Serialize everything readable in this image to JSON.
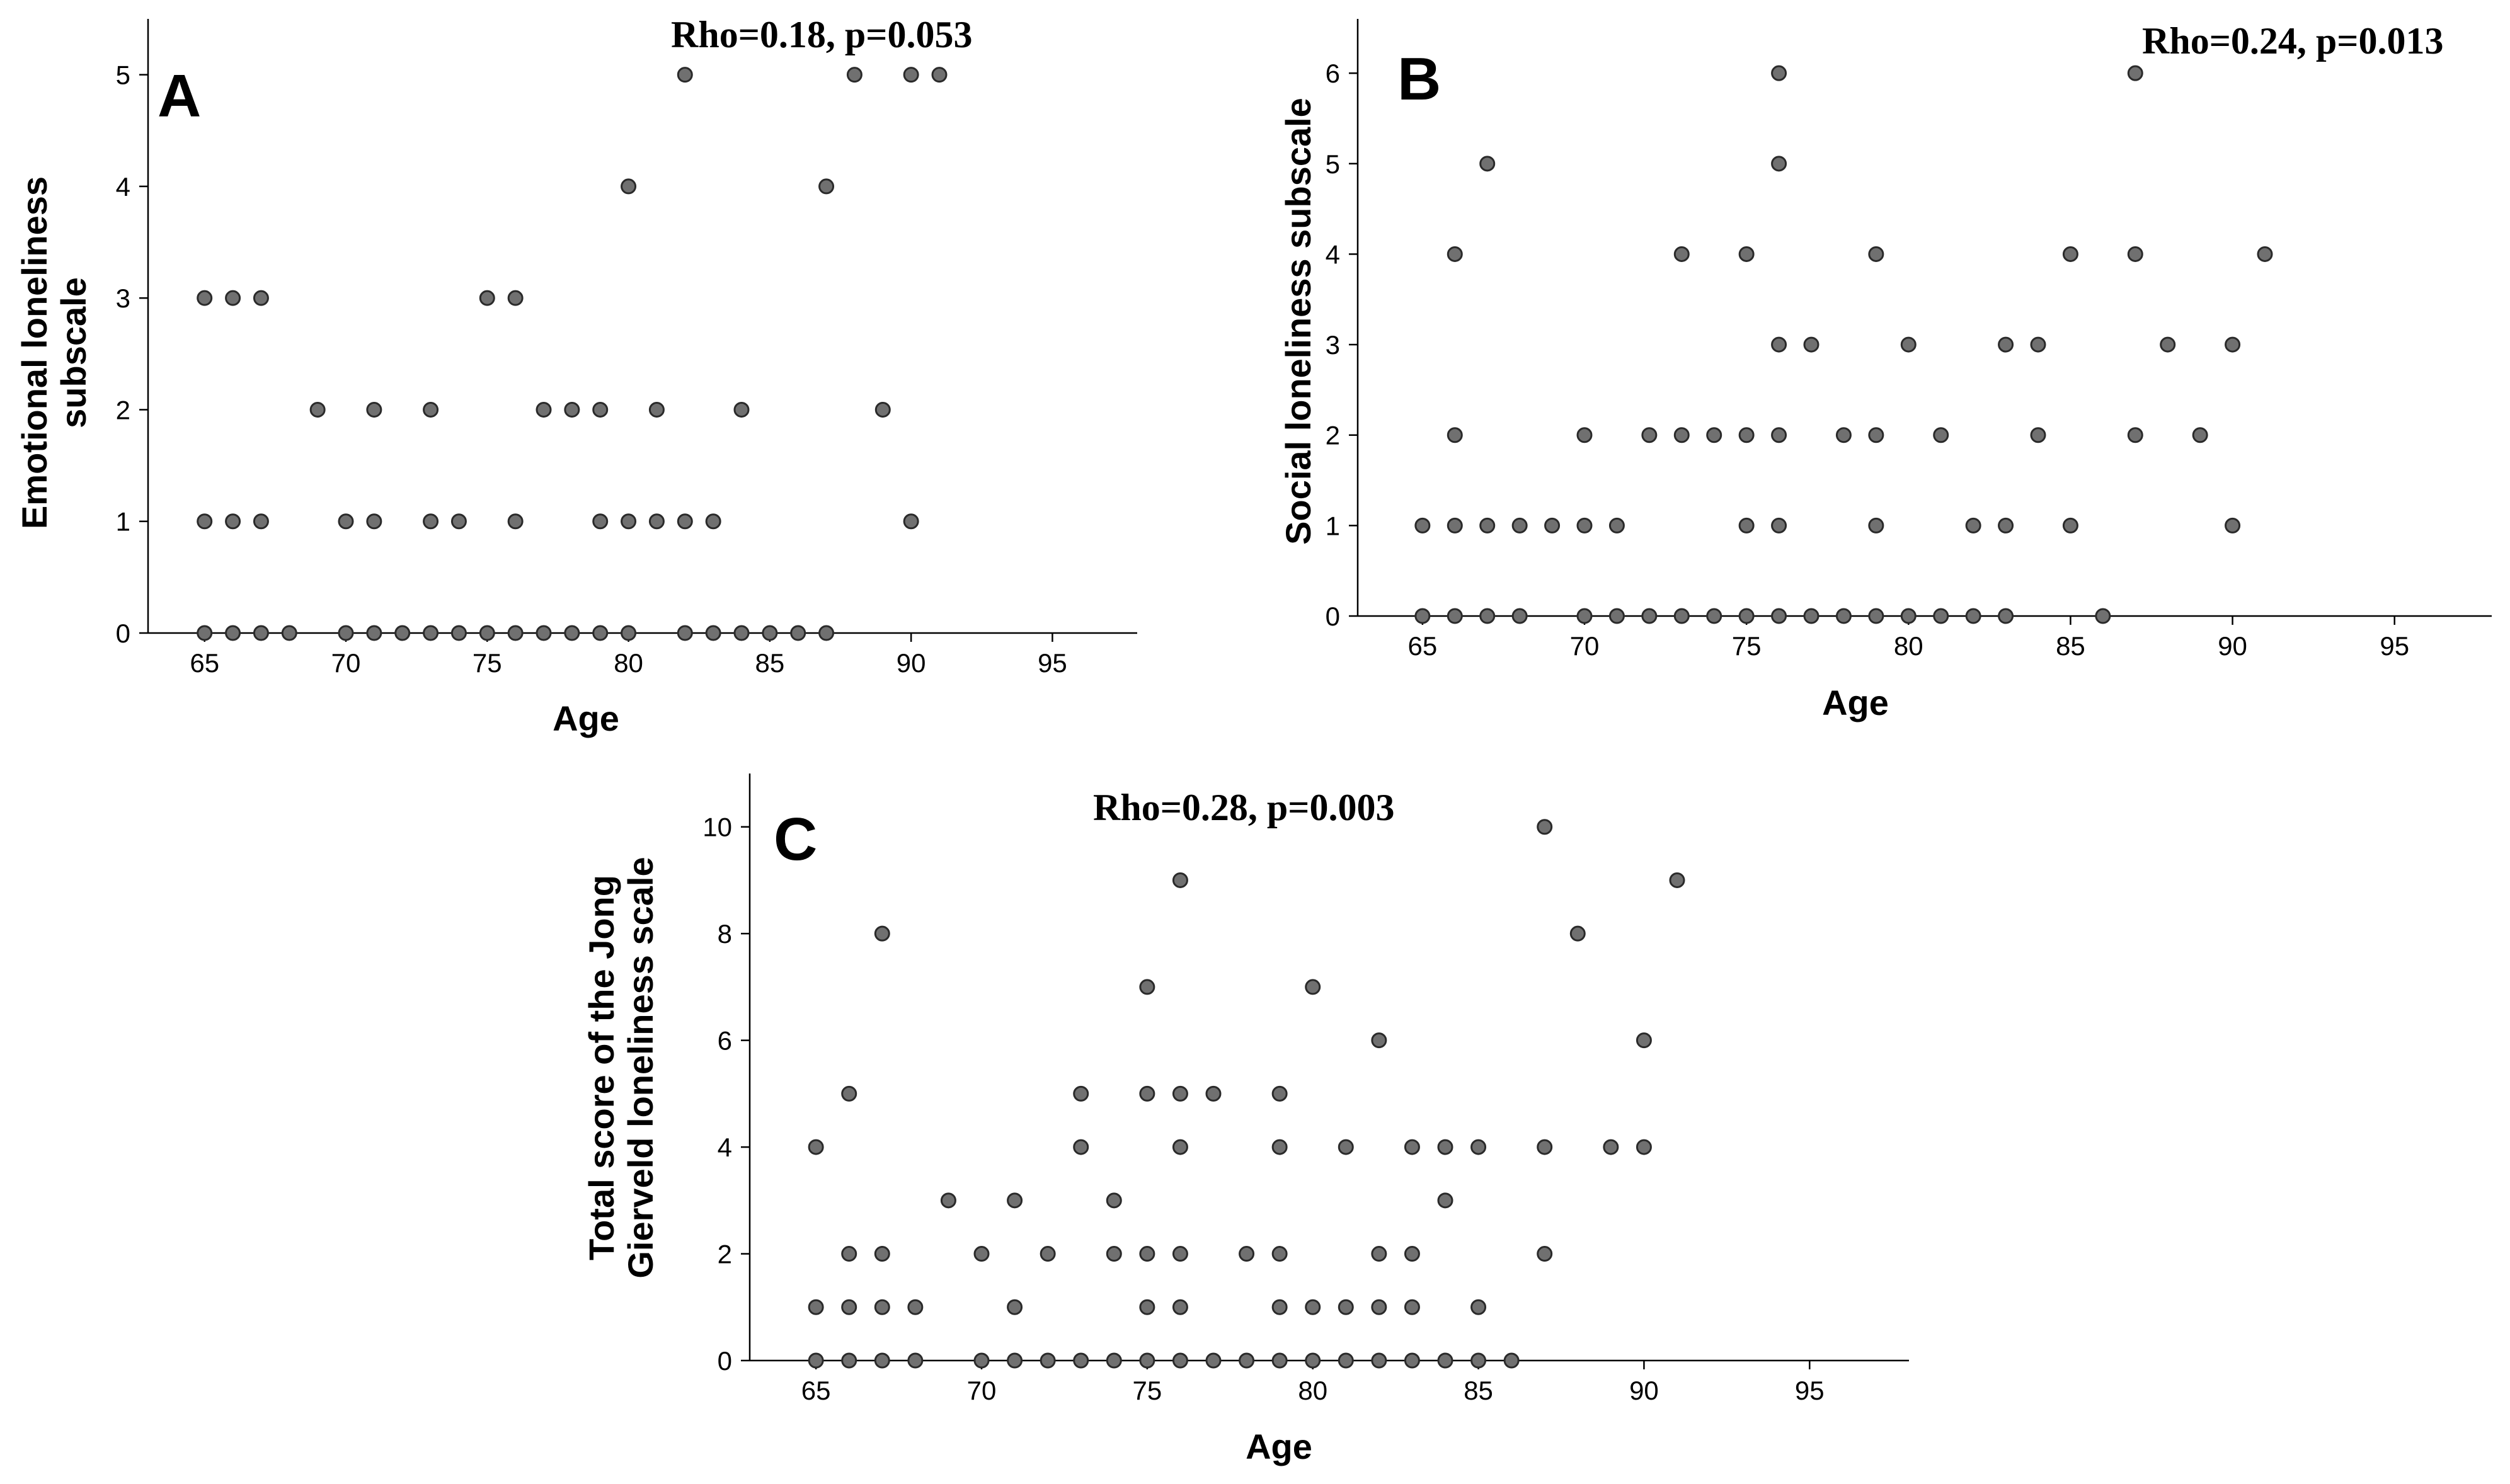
{
  "chart_data": [
    {
      "type": "scatter",
      "panel_letter": "A",
      "annotation": "Rho=0.18, p=0.053",
      "xlabel": "Age",
      "ylabel": [
        "Emotional loneliness",
        "subscale"
      ],
      "xlim": [
        63,
        98
      ],
      "ylim": [
        0,
        5.5
      ],
      "xticks": [
        65,
        70,
        75,
        80,
        85,
        90,
        95
      ],
      "yticks": [
        0,
        1,
        2,
        3,
        4,
        5
      ],
      "points": [
        [
          65,
          0
        ],
        [
          66,
          0
        ],
        [
          67,
          0
        ],
        [
          68,
          0
        ],
        [
          70,
          0
        ],
        [
          71,
          0
        ],
        [
          72,
          0
        ],
        [
          73,
          0
        ],
        [
          74,
          0
        ],
        [
          75,
          0
        ],
        [
          76,
          0
        ],
        [
          77,
          0
        ],
        [
          78,
          0
        ],
        [
          79,
          0
        ],
        [
          80,
          0
        ],
        [
          82,
          0
        ],
        [
          83,
          0
        ],
        [
          84,
          0
        ],
        [
          85,
          0
        ],
        [
          86,
          0
        ],
        [
          87,
          0
        ],
        [
          65,
          1
        ],
        [
          66,
          1
        ],
        [
          67,
          1
        ],
        [
          70,
          1
        ],
        [
          71,
          1
        ],
        [
          73,
          1
        ],
        [
          74,
          1
        ],
        [
          76,
          1
        ],
        [
          79,
          1
        ],
        [
          80,
          1
        ],
        [
          81,
          1
        ],
        [
          82,
          1
        ],
        [
          83,
          1
        ],
        [
          90,
          1
        ],
        [
          69,
          2
        ],
        [
          71,
          2
        ],
        [
          73,
          2
        ],
        [
          77,
          2
        ],
        [
          78,
          2
        ],
        [
          79,
          2
        ],
        [
          81,
          2
        ],
        [
          84,
          2
        ],
        [
          89,
          2
        ],
        [
          65,
          3
        ],
        [
          66,
          3
        ],
        [
          67,
          3
        ],
        [
          75,
          3
        ],
        [
          76,
          3
        ],
        [
          80,
          4
        ],
        [
          87,
          4
        ],
        [
          82,
          5
        ],
        [
          88,
          5
        ],
        [
          90,
          5
        ],
        [
          91,
          5
        ]
      ]
    },
    {
      "type": "scatter",
      "panel_letter": "B",
      "annotation": "Rho=0.24, p=0.013",
      "xlabel": "Age",
      "ylabel": [
        "Social loneliness subscale"
      ],
      "xlim": [
        63,
        98
      ],
      "ylim": [
        0,
        6.6
      ],
      "xticks": [
        65,
        70,
        75,
        80,
        85,
        90,
        95
      ],
      "yticks": [
        0,
        1,
        2,
        3,
        4,
        5,
        6
      ],
      "points": [
        [
          65,
          0
        ],
        [
          66,
          0
        ],
        [
          67,
          0
        ],
        [
          68,
          0
        ],
        [
          70,
          0
        ],
        [
          71,
          0
        ],
        [
          72,
          0
        ],
        [
          73,
          0
        ],
        [
          74,
          0
        ],
        [
          75,
          0
        ],
        [
          76,
          0
        ],
        [
          77,
          0
        ],
        [
          78,
          0
        ],
        [
          79,
          0
        ],
        [
          80,
          0
        ],
        [
          81,
          0
        ],
        [
          82,
          0
        ],
        [
          83,
          0
        ],
        [
          86,
          0
        ],
        [
          65,
          1
        ],
        [
          66,
          1
        ],
        [
          67,
          1
        ],
        [
          68,
          1
        ],
        [
          69,
          1
        ],
        [
          70,
          1
        ],
        [
          71,
          1
        ],
        [
          75,
          1
        ],
        [
          76,
          1
        ],
        [
          79,
          1
        ],
        [
          82,
          1
        ],
        [
          83,
          1
        ],
        [
          85,
          1
        ],
        [
          90,
          1
        ],
        [
          66,
          2
        ],
        [
          70,
          2
        ],
        [
          72,
          2
        ],
        [
          73,
          2
        ],
        [
          74,
          2
        ],
        [
          75,
          2
        ],
        [
          76,
          2
        ],
        [
          78,
          2
        ],
        [
          79,
          2
        ],
        [
          81,
          2
        ],
        [
          84,
          2
        ],
        [
          87,
          2
        ],
        [
          89,
          2
        ],
        [
          76,
          3
        ],
        [
          77,
          3
        ],
        [
          80,
          3
        ],
        [
          83,
          3
        ],
        [
          84,
          3
        ],
        [
          88,
          3
        ],
        [
          90,
          3
        ],
        [
          66,
          4
        ],
        [
          73,
          4
        ],
        [
          75,
          4
        ],
        [
          79,
          4
        ],
        [
          85,
          4
        ],
        [
          87,
          4
        ],
        [
          91,
          4
        ],
        [
          67,
          5
        ],
        [
          76,
          5
        ],
        [
          76,
          6
        ],
        [
          87,
          6
        ]
      ]
    },
    {
      "type": "scatter",
      "panel_letter": "C",
      "annotation": "Rho=0.28, p=0.003",
      "xlabel": "Age",
      "ylabel": [
        "Total score of the Jong",
        "Gierveld loneliness scale"
      ],
      "xlim": [
        63,
        98
      ],
      "ylim": [
        0,
        11
      ],
      "xticks": [
        65,
        70,
        75,
        80,
        85,
        90,
        95
      ],
      "yticks": [
        0,
        2,
        4,
        6,
        8,
        10
      ],
      "points": [
        [
          65,
          0
        ],
        [
          66,
          0
        ],
        [
          67,
          0
        ],
        [
          68,
          0
        ],
        [
          70,
          0
        ],
        [
          71,
          0
        ],
        [
          72,
          0
        ],
        [
          73,
          0
        ],
        [
          74,
          0
        ],
        [
          75,
          0
        ],
        [
          76,
          0
        ],
        [
          77,
          0
        ],
        [
          78,
          0
        ],
        [
          79,
          0
        ],
        [
          80,
          0
        ],
        [
          81,
          0
        ],
        [
          82,
          0
        ],
        [
          83,
          0
        ],
        [
          84,
          0
        ],
        [
          85,
          0
        ],
        [
          86,
          0
        ],
        [
          65,
          1
        ],
        [
          66,
          1
        ],
        [
          67,
          1
        ],
        [
          68,
          1
        ],
        [
          71,
          1
        ],
        [
          75,
          1
        ],
        [
          76,
          1
        ],
        [
          79,
          1
        ],
        [
          80,
          1
        ],
        [
          81,
          1
        ],
        [
          82,
          1
        ],
        [
          83,
          1
        ],
        [
          85,
          1
        ],
        [
          66,
          2
        ],
        [
          67,
          2
        ],
        [
          70,
          2
        ],
        [
          72,
          2
        ],
        [
          74,
          2
        ],
        [
          75,
          2
        ],
        [
          76,
          2
        ],
        [
          78,
          2
        ],
        [
          79,
          2
        ],
        [
          82,
          2
        ],
        [
          83,
          2
        ],
        [
          87,
          2
        ],
        [
          69,
          3
        ],
        [
          71,
          3
        ],
        [
          74,
          3
        ],
        [
          84,
          3
        ],
        [
          65,
          4
        ],
        [
          73,
          4
        ],
        [
          76,
          4
        ],
        [
          79,
          4
        ],
        [
          81,
          4
        ],
        [
          83,
          4
        ],
        [
          84,
          4
        ],
        [
          85,
          4
        ],
        [
          87,
          4
        ],
        [
          89,
          4
        ],
        [
          90,
          4
        ],
        [
          66,
          5
        ],
        [
          73,
          5
        ],
        [
          75,
          5
        ],
        [
          76,
          5
        ],
        [
          77,
          5
        ],
        [
          79,
          5
        ],
        [
          82,
          6
        ],
        [
          90,
          6
        ],
        [
          75,
          7
        ],
        [
          80,
          7
        ],
        [
          67,
          8
        ],
        [
          88,
          8
        ],
        [
          76,
          9
        ],
        [
          91,
          9
        ],
        [
          87,
          10
        ]
      ]
    }
  ]
}
